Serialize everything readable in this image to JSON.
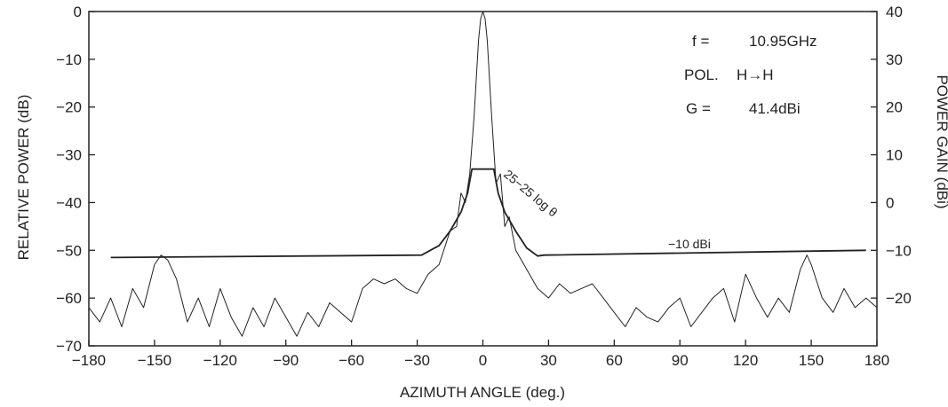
{
  "chart_data": {
    "type": "line",
    "title": "",
    "xlabel": "AZIMUTH ANGLE (deg.)",
    "ylabel": "RELATIVE POWER (dB)",
    "y2label": "POWER GAIN (dBi)",
    "xlim": [
      -180,
      180
    ],
    "ylim": [
      -70,
      0
    ],
    "y2lim": [
      -30,
      40
    ],
    "x_ticks": [
      "−180",
      "−150",
      "−120",
      "−90",
      "−60",
      "−30",
      "0",
      "30",
      "60",
      "90",
      "120",
      "150",
      "180"
    ],
    "y_ticks": [
      "0",
      "−10",
      "−20",
      "−30",
      "−40",
      "−50",
      "−60",
      "−70"
    ],
    "y2_ticks": [
      "40",
      "30",
      "20",
      "10",
      "0",
      "−10",
      "−20"
    ],
    "grid": false,
    "annotations": {
      "freq_label": "f =",
      "freq_value": "10.95GHz",
      "pol_label": "POL.",
      "pol_value": "H→H",
      "gain_label": "G =",
      "gain_value": "41.4dBi",
      "envelope_label": "25−25 log θ",
      "floor_label": "−10 dBi"
    },
    "series": [
      {
        "x": [
          -180,
          -175,
          -170,
          -165,
          -160,
          -155,
          -150,
          -147,
          -144,
          -140,
          -135,
          -130,
          -125,
          -120,
          -115,
          -110,
          -105,
          -100,
          -95,
          -90,
          -85,
          -80,
          -75,
          -70,
          -65,
          -60,
          -55,
          -50,
          -45,
          -40,
          -35,
          -30,
          -25,
          -20,
          -15,
          -12,
          -10,
          -8,
          -6,
          -4,
          -3,
          -2,
          -1,
          0,
          1,
          2,
          3,
          4,
          6,
          8,
          10,
          12,
          15,
          20,
          25,
          30,
          35,
          40,
          45,
          50,
          55,
          60,
          65,
          70,
          75,
          80,
          85,
          90,
          95,
          100,
          105,
          110,
          115,
          120,
          125,
          130,
          135,
          140,
          145,
          148,
          150,
          155,
          160,
          165,
          170,
          175,
          180
        ],
        "y": [
          -62,
          -65,
          -60,
          -66,
          -58,
          -62,
          -53,
          -51,
          -52,
          -56,
          -65,
          -60,
          -66,
          -58,
          -64,
          -68,
          -62,
          -66,
          -60,
          -64,
          -68,
          -63,
          -66,
          -61,
          -63,
          -65,
          -58,
          -56,
          -57,
          -56,
          -58,
          -59,
          -55,
          -53,
          -46,
          -45,
          -38,
          -40,
          -34,
          -22,
          -14,
          -6,
          -1.5,
          0,
          -1.5,
          -6,
          -14,
          -22,
          -36,
          -34,
          -45,
          -43,
          -50,
          -54,
          -58,
          -60,
          -57,
          -59,
          -58,
          -57,
          -60,
          -63,
          -66,
          -62,
          -64,
          -65,
          -62,
          -60,
          -66,
          -63,
          -60,
          -58,
          -65,
          -55,
          -60,
          -64,
          -60,
          -63,
          -54,
          -51,
          -53,
          -60,
          -63,
          -58,
          -62,
          -60,
          -62
        ]
      },
      {
        "x": [
          -170,
          -28,
          -20,
          -15,
          -10,
          -7,
          -5,
          5,
          7,
          10,
          15,
          20,
          25,
          28,
          175
        ],
        "y": [
          -51.5,
          -51,
          -49,
          -46,
          -42,
          -38,
          -33,
          -33,
          -38,
          -42,
          -46,
          -49.5,
          -51.2,
          -51,
          -50
        ]
      }
    ]
  }
}
